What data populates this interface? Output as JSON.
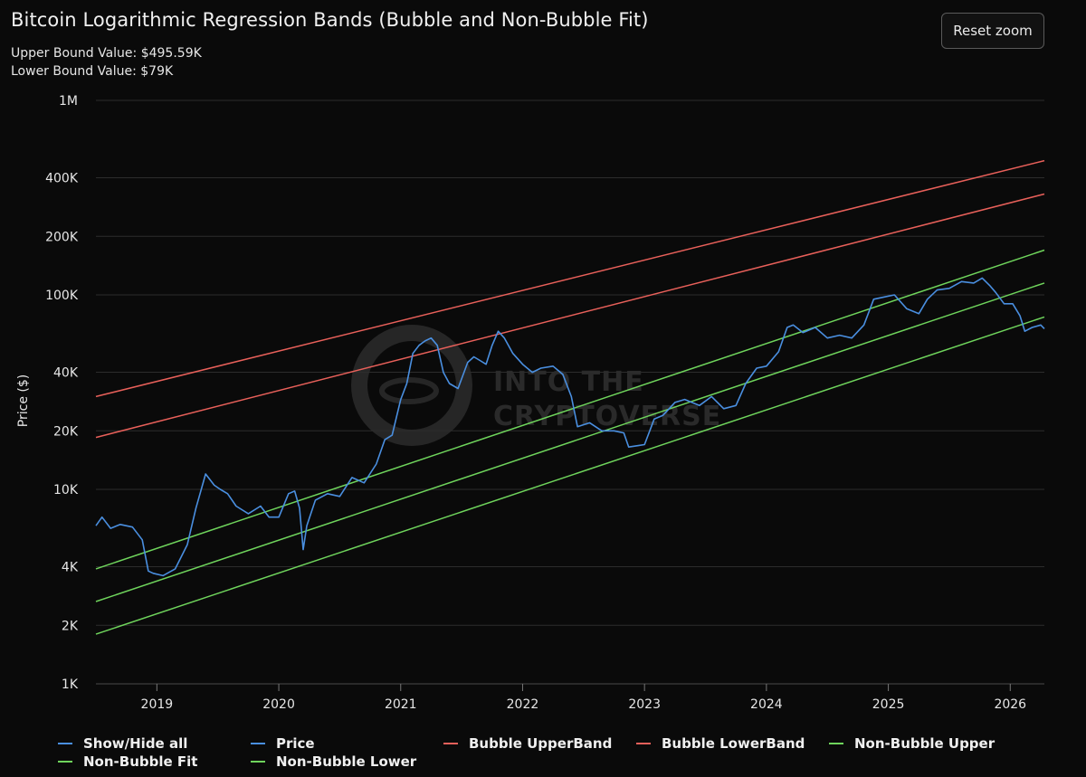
{
  "header": {
    "title": "Bitcoin Logarithmic Regression Bands (Bubble and Non-Bubble Fit)",
    "upper_bound": "Upper Bound Value: $495.59K",
    "lower_bound": "Lower Bound Value: $79K",
    "reset_label": "Reset zoom"
  },
  "watermark": {
    "line1": "INTO THE",
    "line2": "CRYPTOVERSE"
  },
  "colors": {
    "background": "#0a0a0a",
    "price": "#4a8fe0",
    "bubble": "#e8605a",
    "nonbubble": "#6fd45c",
    "grid": "#2c2c2c"
  },
  "legend": [
    {
      "label": "Show/Hide all",
      "color": "#4a8fe0"
    },
    {
      "label": "Price",
      "color": "#4a8fe0"
    },
    {
      "label": "Bubble UpperBand",
      "color": "#e8605a"
    },
    {
      "label": "Bubble LowerBand",
      "color": "#e8605a"
    },
    {
      "label": "Non-Bubble Upper",
      "color": "#6fd45c"
    },
    {
      "label": "Non-Bubble Fit",
      "color": "#6fd45c"
    },
    {
      "label": "Non-Bubble Lower",
      "color": "#6fd45c"
    }
  ],
  "chart_data": {
    "type": "line",
    "title": "Bitcoin Logarithmic Regression Bands (Bubble and Non-Bubble Fit)",
    "xlabel": "",
    "ylabel": "Price ($)",
    "yscale": "log",
    "ylim": [
      1000,
      1000000
    ],
    "xlim": [
      2018.5,
      2026.28
    ],
    "grid": true,
    "legend_position": "bottom",
    "y_ticks": [
      {
        "value": 1000,
        "label": "1K"
      },
      {
        "value": 2000,
        "label": "2K"
      },
      {
        "value": 4000,
        "label": "4K"
      },
      {
        "value": 10000,
        "label": "10K"
      },
      {
        "value": 20000,
        "label": "20K"
      },
      {
        "value": 40000,
        "label": "40K"
      },
      {
        "value": 100000,
        "label": "100K"
      },
      {
        "value": 200000,
        "label": "200K"
      },
      {
        "value": 400000,
        "label": "400K"
      },
      {
        "value": 1000000,
        "label": "1M"
      }
    ],
    "x_ticks": [
      {
        "value": 2019,
        "label": "2019"
      },
      {
        "value": 2020,
        "label": "2020"
      },
      {
        "value": 2021,
        "label": "2021"
      },
      {
        "value": 2022,
        "label": "2022"
      },
      {
        "value": 2023,
        "label": "2023"
      },
      {
        "value": 2024,
        "label": "2024"
      },
      {
        "value": 2025,
        "label": "2025"
      },
      {
        "value": 2026,
        "label": "2026"
      }
    ],
    "series": [
      {
        "name": "Price",
        "color": "#4a8fe0",
        "x": [
          2018.5,
          2018.55,
          2018.62,
          2018.7,
          2018.8,
          2018.88,
          2018.93,
          2018.97,
          2019.05,
          2019.15,
          2019.25,
          2019.32,
          2019.4,
          2019.47,
          2019.52,
          2019.58,
          2019.65,
          2019.75,
          2019.85,
          2019.92,
          2020.0,
          2020.08,
          2020.13,
          2020.17,
          2020.2,
          2020.23,
          2020.3,
          2020.4,
          2020.5,
          2020.6,
          2020.7,
          2020.8,
          2020.87,
          2020.93,
          2021.0,
          2021.05,
          2021.1,
          2021.15,
          2021.2,
          2021.25,
          2021.3,
          2021.35,
          2021.4,
          2021.47,
          2021.55,
          2021.6,
          2021.65,
          2021.7,
          2021.75,
          2021.8,
          2021.85,
          2021.92,
          2022.0,
          2022.08,
          2022.15,
          2022.25,
          2022.33,
          2022.4,
          2022.45,
          2022.55,
          2022.65,
          2022.75,
          2022.83,
          2022.87,
          2022.95,
          2023.0,
          2023.08,
          2023.15,
          2023.25,
          2023.33,
          2023.45,
          2023.55,
          2023.65,
          2023.75,
          2023.83,
          2023.92,
          2024.0,
          2024.1,
          2024.17,
          2024.22,
          2024.3,
          2024.4,
          2024.5,
          2024.6,
          2024.7,
          2024.8,
          2024.88,
          2024.95,
          2025.05,
          2025.15,
          2025.25,
          2025.32,
          2025.4,
          2025.5,
          2025.6,
          2025.7,
          2025.77,
          2025.83,
          2025.88,
          2025.95,
          2026.02,
          2026.08,
          2026.12,
          2026.18,
          2026.25,
          2026.28
        ],
        "values": [
          6500,
          7200,
          6300,
          6600,
          6400,
          5500,
          3800,
          3700,
          3600,
          3900,
          5200,
          8000,
          12000,
          10500,
          10000,
          9500,
          8200,
          7500,
          8200,
          7200,
          7200,
          9500,
          9800,
          8000,
          4900,
          6500,
          8800,
          9500,
          9200,
          11500,
          10800,
          13500,
          18000,
          19000,
          29000,
          35000,
          50000,
          55000,
          58000,
          60000,
          55000,
          40000,
          35000,
          33000,
          45000,
          48000,
          46000,
          44000,
          55000,
          65000,
          60000,
          50000,
          44000,
          40000,
          42000,
          43000,
          39000,
          30000,
          21000,
          22000,
          20000,
          20000,
          19500,
          16500,
          16800,
          17000,
          23000,
          24000,
          28000,
          29000,
          27000,
          30000,
          26000,
          27000,
          35000,
          42000,
          43000,
          51000,
          68000,
          70000,
          64000,
          68000,
          60000,
          62000,
          60000,
          70000,
          95000,
          97000,
          100000,
          85000,
          80000,
          95000,
          106000,
          108000,
          117000,
          115000,
          122000,
          112000,
          103000,
          90000,
          90000,
          78000,
          65000,
          68000,
          70000,
          67000
        ]
      },
      {
        "name": "Bubble UpperBand",
        "color": "#e8605a",
        "x": [
          2018.5,
          2026.28
        ],
        "values": [
          30000,
          490000
        ]
      },
      {
        "name": "Bubble LowerBand",
        "color": "#e8605a",
        "x": [
          2018.5,
          2026.28
        ],
        "values": [
          18500,
          330000
        ]
      },
      {
        "name": "Non-Bubble Upper",
        "color": "#6fd45c",
        "x": [
          2018.5,
          2026.28
        ],
        "values": [
          3900,
          170000
        ]
      },
      {
        "name": "Non-Bubble Fit",
        "color": "#6fd45c",
        "x": [
          2018.5,
          2026.28
        ],
        "values": [
          2650,
          115000
        ]
      },
      {
        "name": "Non-Bubble Lower",
        "color": "#6fd45c",
        "x": [
          2018.5,
          2026.28
        ],
        "values": [
          1800,
          77000
        ]
      }
    ]
  }
}
